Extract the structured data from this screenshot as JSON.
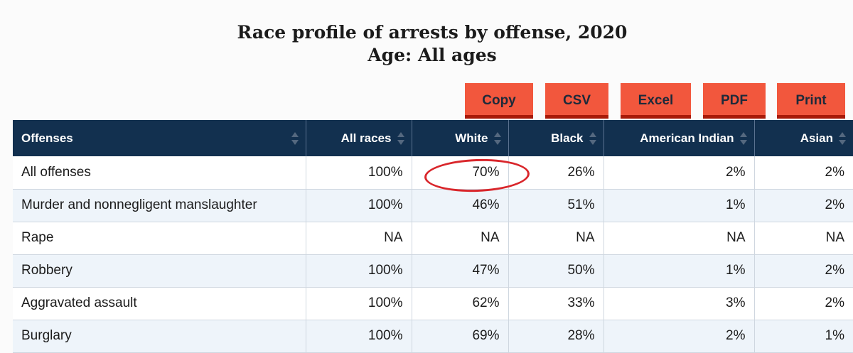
{
  "title": {
    "line1": "Race profile of arrests by offense, 2020",
    "line2": "Age: All ages"
  },
  "buttons": {
    "copy": "Copy",
    "csv": "CSV",
    "excel": "Excel",
    "pdf": "PDF",
    "print": "Print"
  },
  "colors": {
    "header_bg": "#12304f",
    "button_bg": "#f2573d",
    "button_border": "#a81a08",
    "annotation": "#d9262b",
    "row_alt": "#eef4fa"
  },
  "table": {
    "headers": [
      "Offenses",
      "All races",
      "White",
      "Black",
      "American Indian",
      "Asian"
    ],
    "rows": [
      [
        "All offenses",
        "100%",
        "70%",
        "26%",
        "2%",
        "2%"
      ],
      [
        "Murder and nonnegligent manslaughter",
        "100%",
        "46%",
        "51%",
        "1%",
        "2%"
      ],
      [
        "Rape",
        "NA",
        "NA",
        "NA",
        "NA",
        "NA"
      ],
      [
        "Robbery",
        "100%",
        "47%",
        "50%",
        "1%",
        "2%"
      ],
      [
        "Aggravated assault",
        "100%",
        "62%",
        "33%",
        "3%",
        "2%"
      ],
      [
        "Burglary",
        "100%",
        "69%",
        "28%",
        "2%",
        "1%"
      ]
    ]
  },
  "annotation": {
    "type": "hand-drawn-ellipse",
    "target": "All offenses / White"
  }
}
